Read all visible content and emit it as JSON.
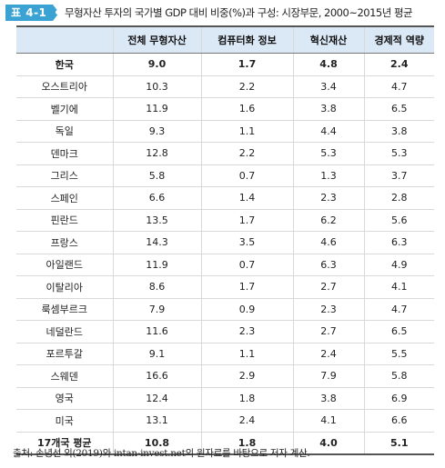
{
  "table_tag": "표 4-1",
  "title": "무형자산 투자의 국가별 GDP 대비 비중(%)과 구성: 시장부문, 2000~2015년 평균",
  "columns": [
    "",
    "전체 무형자산",
    "컴퓨터화 정보",
    "혁신재산",
    "경제적 역량"
  ],
  "rows": [
    {
      "country": "한국",
      "total": "9.0",
      "computer": "1.7",
      "innovation": "4.8",
      "economic": "2.4",
      "bold": true
    },
    {
      "country": "오스트리아",
      "total": "10.3",
      "computer": "2.2",
      "innovation": "3.4",
      "economic": "4.7"
    },
    {
      "country": "벨기에",
      "total": "11.9",
      "computer": "1.6",
      "innovation": "3.8",
      "economic": "6.5"
    },
    {
      "country": "독일",
      "total": "9.3",
      "computer": "1.1",
      "innovation": "4.4",
      "economic": "3.8"
    },
    {
      "country": "덴마크",
      "total": "12.8",
      "computer": "2.2",
      "innovation": "5.3",
      "economic": "5.3"
    },
    {
      "country": "그리스",
      "total": "5.8",
      "computer": "0.7",
      "innovation": "1.3",
      "economic": "3.7"
    },
    {
      "country": "스페인",
      "total": "6.6",
      "computer": "1.4",
      "innovation": "2.3",
      "economic": "2.8"
    },
    {
      "country": "핀란드",
      "total": "13.5",
      "computer": "1.7",
      "innovation": "6.2",
      "economic": "5.6"
    },
    {
      "country": "프랑스",
      "total": "14.3",
      "computer": "3.5",
      "innovation": "4.6",
      "economic": "6.3"
    },
    {
      "country": "아일랜드",
      "total": "11.9",
      "computer": "0.7",
      "innovation": "6.3",
      "economic": "4.9"
    },
    {
      "country": "이탈리아",
      "total": "8.6",
      "computer": "1.7",
      "innovation": "2.7",
      "economic": "4.1"
    },
    {
      "country": "룩셈부르크",
      "total": "7.9",
      "computer": "0.9",
      "innovation": "2.3",
      "economic": "4.7"
    },
    {
      "country": "네덜란드",
      "total": "11.6",
      "computer": "2.3",
      "innovation": "2.7",
      "economic": "6.5"
    },
    {
      "country": "포르투갈",
      "total": "9.1",
      "computer": "1.1",
      "innovation": "2.4",
      "economic": "5.5"
    },
    {
      "country": "스웨덴",
      "total": "16.6",
      "computer": "2.9",
      "innovation": "7.9",
      "economic": "5.8"
    },
    {
      "country": "영국",
      "total": "12.4",
      "computer": "1.8",
      "innovation": "3.8",
      "economic": "6.9"
    },
    {
      "country": "미국",
      "total": "13.1",
      "computer": "2.4",
      "innovation": "4.1",
      "economic": "6.6"
    }
  ],
  "average": {
    "country": "17개국 평균",
    "total": "10.8",
    "computer": "1.8",
    "innovation": "4.0",
    "economic": "5.1"
  },
  "source": "출처: 손녕선 외(2019)와 intan-invest.net의 원자료를 바탕으로 저자 계산.",
  "colors": {
    "accent": "#3aa3d3",
    "header_bg": "#dbe8f6"
  }
}
